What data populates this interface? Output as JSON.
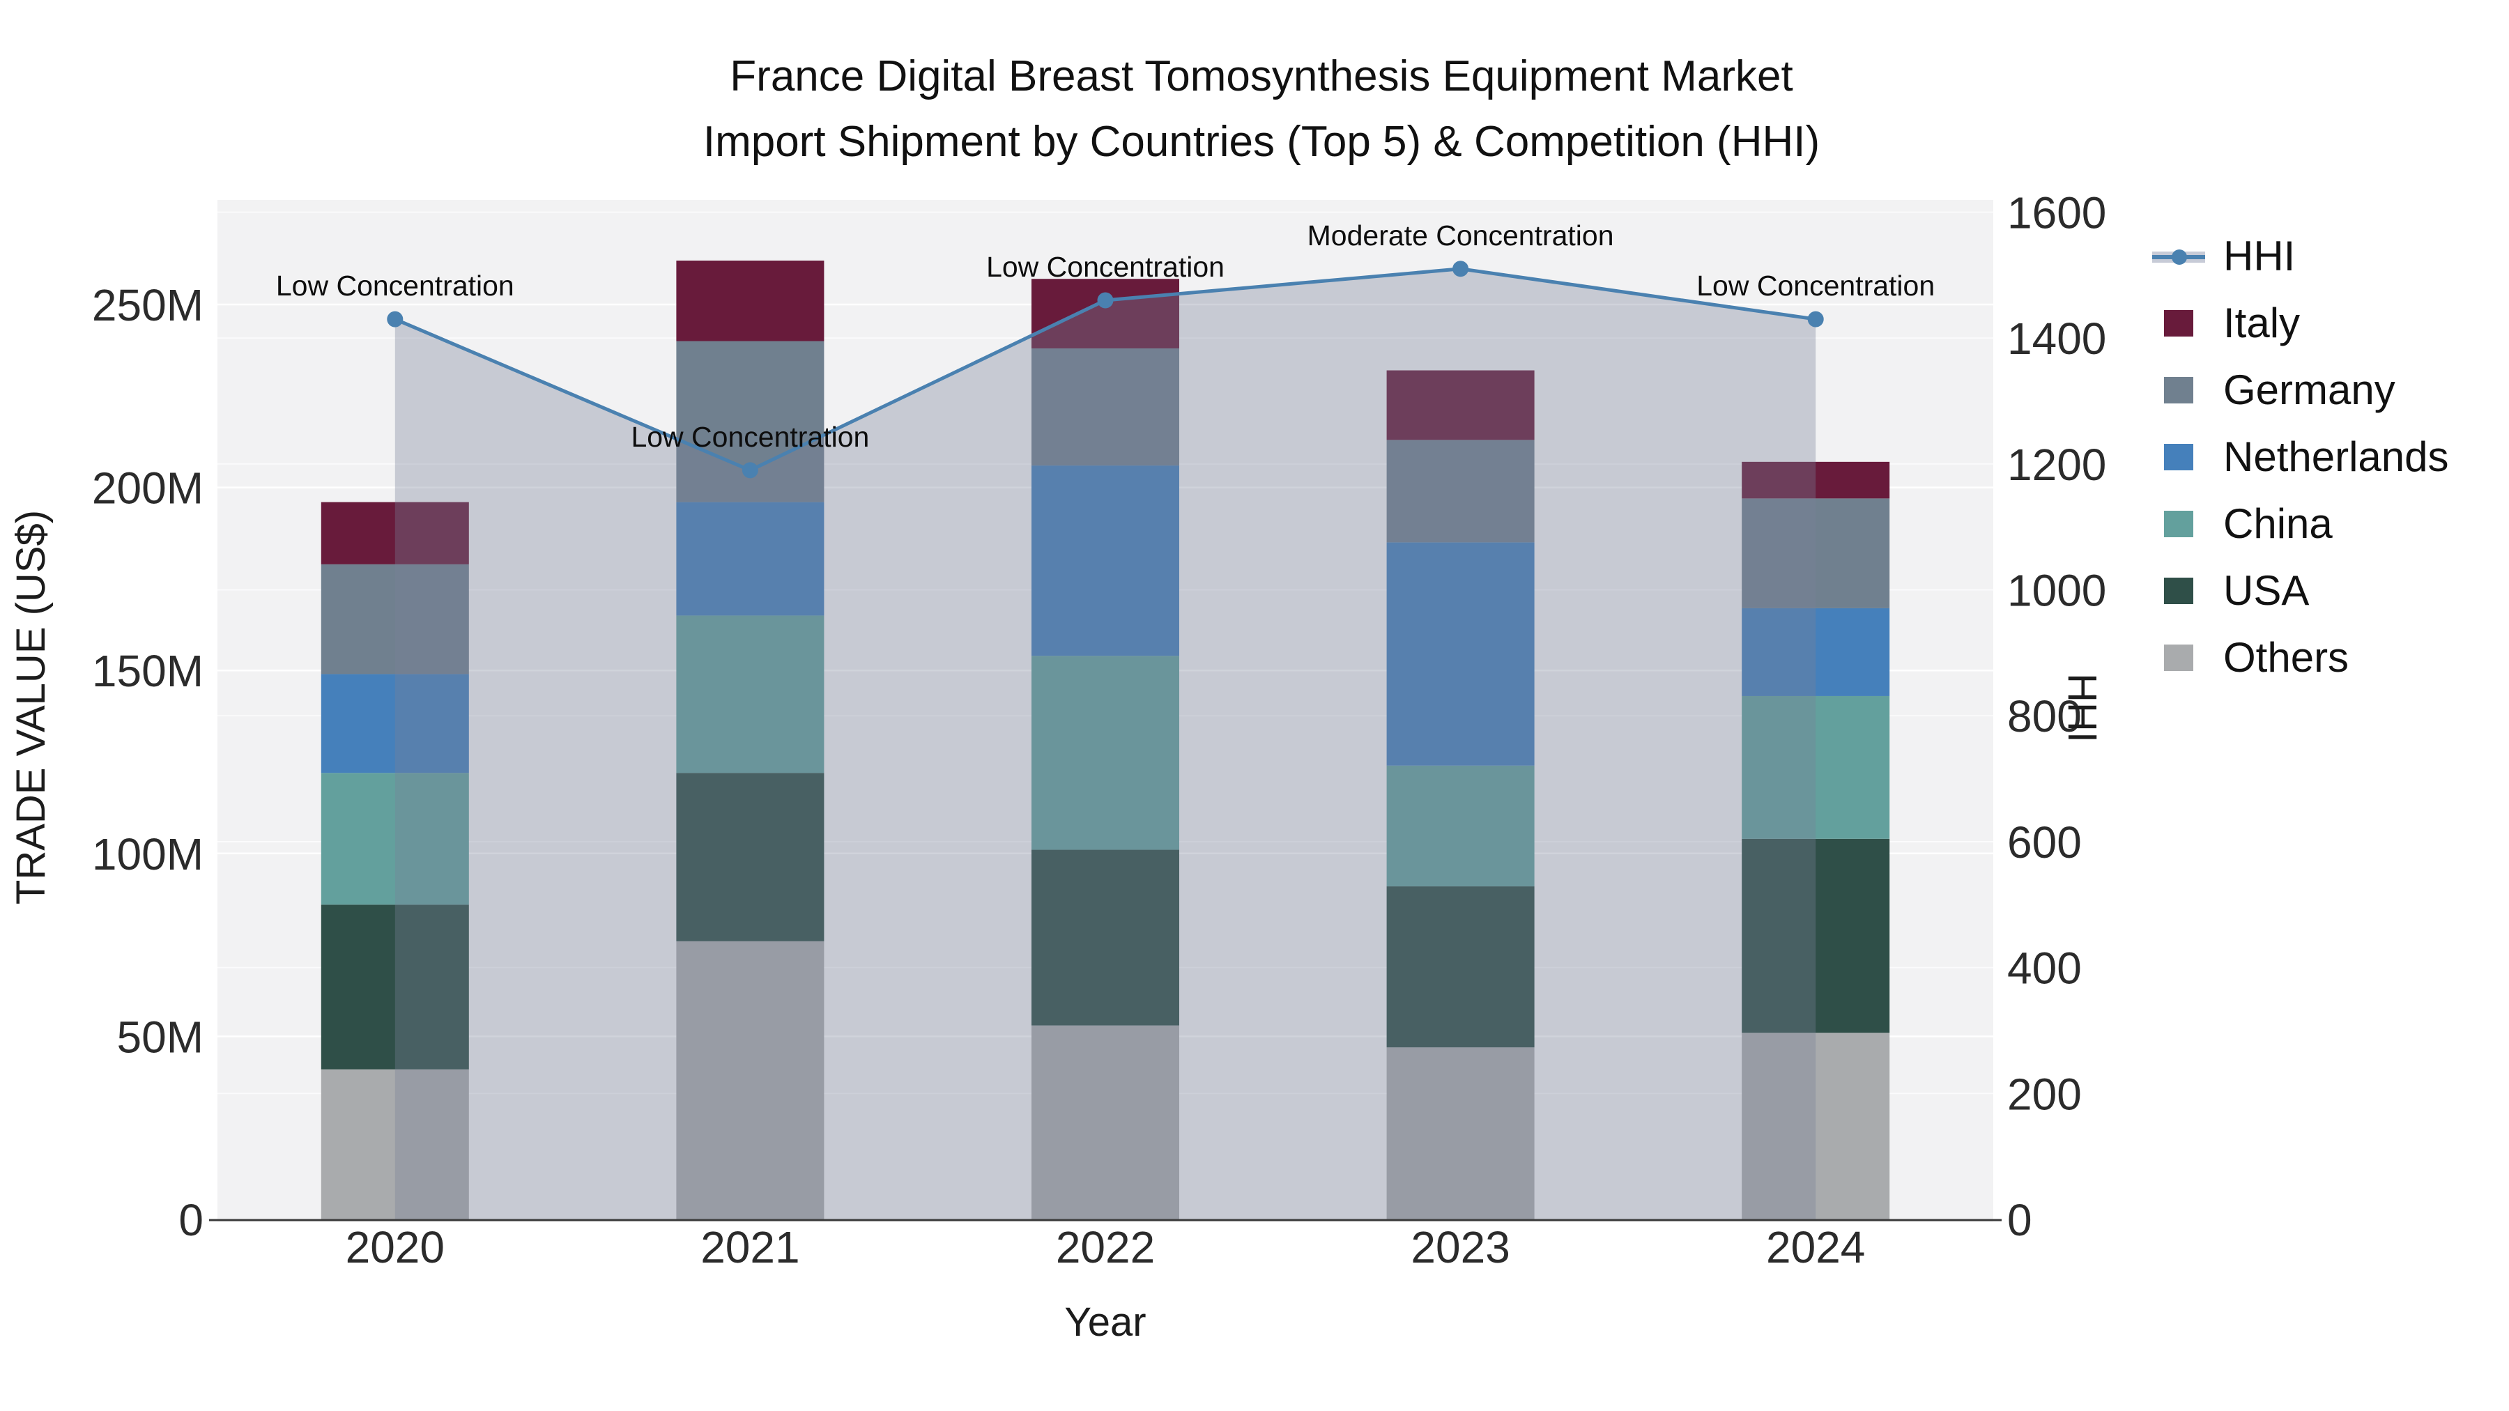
{
  "title": {
    "line1": "France Digital Breast Tomosynthesis Equipment Market",
    "line2": "Import Shipment by Countries (Top 5) & Competition (HHI)"
  },
  "axes": {
    "x": {
      "title": "Year",
      "categories": [
        "2020",
        "2021",
        "2022",
        "2023",
        "2024"
      ]
    },
    "y_left": {
      "title": "TRADE VALUE (US$)",
      "tick_labels": [
        "0",
        "50M",
        "100M",
        "150M",
        "200M",
        "250M"
      ],
      "tick_values": [
        0,
        50,
        100,
        150,
        200,
        250
      ],
      "units": "millions US$"
    },
    "y_right": {
      "title": "HHI",
      "tick_values": [
        0,
        200,
        400,
        600,
        800,
        1000,
        1200,
        1400,
        1600
      ],
      "range": [
        0,
        1600
      ]
    }
  },
  "chart_data": {
    "type": "bar",
    "subtype": "stacked-bars-with-line-overlay",
    "categories": [
      "2020",
      "2021",
      "2022",
      "2023",
      "2024"
    ],
    "bar_units": "M US$",
    "series": [
      {
        "name": "Italy",
        "color": "#681b3b",
        "values": [
          17,
          22,
          19,
          19,
          10
        ]
      },
      {
        "name": "Germany",
        "color": "#70808f",
        "values": [
          30,
          44,
          32,
          28,
          30
        ]
      },
      {
        "name": "Netherlands",
        "color": "#4580bb",
        "values": [
          27,
          31,
          52,
          61,
          24
        ]
      },
      {
        "name": "China",
        "color": "#63a09d",
        "values": [
          36,
          43,
          53,
          33,
          39
        ]
      },
      {
        "name": "USA",
        "color": "#2f4f48",
        "values": [
          45,
          46,
          48,
          44,
          53
        ]
      },
      {
        "name": "Others",
        "color": "#a9abad",
        "values": [
          41,
          76,
          53,
          47,
          51
        ]
      }
    ],
    "stack_order_bottom_to_top": [
      "Others",
      "USA",
      "China",
      "Netherlands",
      "Germany",
      "Italy"
    ],
    "bar_totals": [
      196,
      262,
      257,
      232,
      207
    ],
    "hhi": {
      "name": "HHI",
      "line_color": "#4a81b0",
      "area_fill": "rgba(120,128,152,0.35)",
      "values": [
        1430,
        1190,
        1460,
        1510,
        1430
      ],
      "axis": "right"
    },
    "annotations": [
      {
        "category": "2020",
        "text": "Low Concentration"
      },
      {
        "category": "2021",
        "text": "Low Concentration"
      },
      {
        "category": "2022",
        "text": "Low Concentration"
      },
      {
        "category": "2023",
        "text": "Moderate Concentration"
      },
      {
        "category": "2024",
        "text": "Low Concentration"
      }
    ],
    "legend_position": "right",
    "grid": true,
    "plot_background": "#f2f2f3"
  },
  "legend": {
    "items": [
      "HHI",
      "Italy",
      "Germany",
      "Netherlands",
      "China",
      "USA",
      "Others"
    ]
  }
}
